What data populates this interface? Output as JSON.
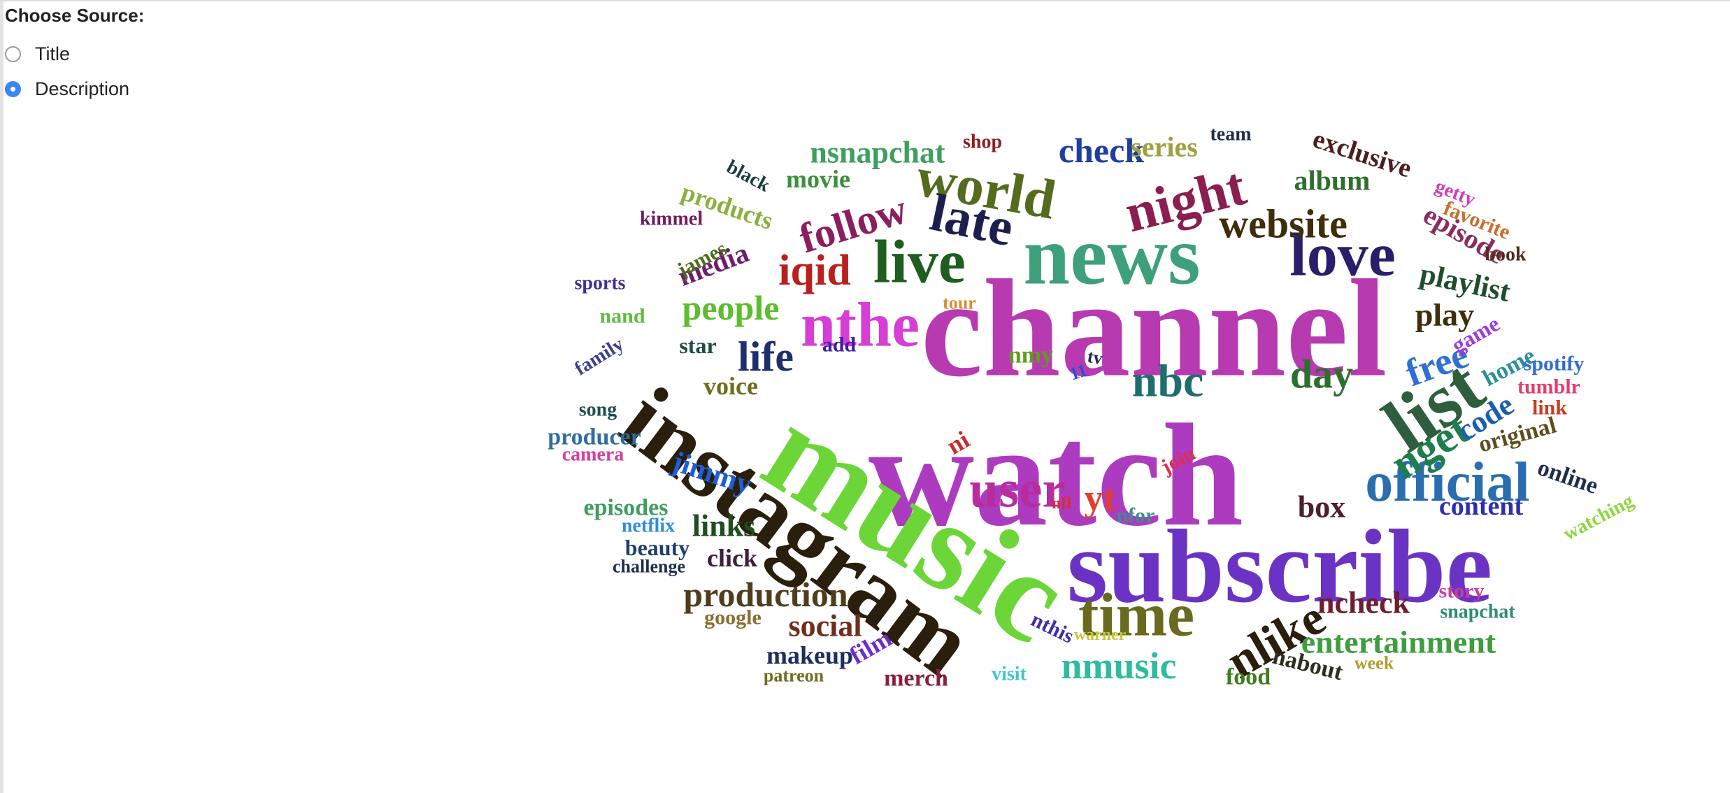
{
  "source_selector": {
    "title": "Choose Source:",
    "options": [
      {
        "label": "Title",
        "checked": false
      },
      {
        "label": "Description",
        "checked": true
      }
    ]
  },
  "word_cloud": {
    "words": [
      {
        "text": "channel",
        "color": "#b83ab0"
      },
      {
        "text": "watch",
        "color": "#ad3bbf"
      },
      {
        "text": "music",
        "color": "#6cd638"
      },
      {
        "text": "instagram",
        "color": "#2a1e0c"
      },
      {
        "text": "subscribe",
        "color": "#6a33c4"
      },
      {
        "text": "news",
        "color": "#3ea07a"
      },
      {
        "text": "list",
        "color": "#2e5e3e"
      },
      {
        "text": "nthe",
        "color": "#d63ed6"
      },
      {
        "text": "official",
        "color": "#2a6eb0"
      },
      {
        "text": "love",
        "color": "#2a1e6a"
      },
      {
        "text": "world",
        "color": "#556b1e"
      },
      {
        "text": "live",
        "color": "#1e5e1e"
      },
      {
        "text": "time",
        "color": "#6a6a1e"
      },
      {
        "text": "night",
        "color": "#8a1e4e"
      },
      {
        "text": "user",
        "color": "#b82c9e"
      },
      {
        "text": "late",
        "color": "#1e1e4e"
      },
      {
        "text": "nlike",
        "color": "#2a1e0c"
      },
      {
        "text": "nbc",
        "color": "#1e6e6e"
      },
      {
        "text": "nget",
        "color": "#1e7e4e"
      },
      {
        "text": "website",
        "color": "#3e2e0c"
      },
      {
        "text": "iqid",
        "color": "#b8201e"
      },
      {
        "text": "follow",
        "color": "#8a1e5e"
      },
      {
        "text": "life",
        "color": "#1e2e6e"
      },
      {
        "text": "day",
        "color": "#2e6e2e"
      },
      {
        "text": "free",
        "color": "#2e6ed6"
      },
      {
        "text": "nmusic",
        "color": "#2ebc9e"
      },
      {
        "text": "production",
        "color": "#4e3e1e"
      },
      {
        "text": "entertainment",
        "color": "#3e9e3e"
      },
      {
        "text": "people",
        "color": "#5ebc2e"
      },
      {
        "text": "playlist",
        "color": "#1e4e2e"
      },
      {
        "text": "ncheck",
        "color": "#6e1e2e"
      },
      {
        "text": "check",
        "color": "#1e3ea0"
      },
      {
        "text": "nsnapchat",
        "color": "#3ea05e"
      },
      {
        "text": "play",
        "color": "#3e2e0c"
      },
      {
        "text": "jimmy",
        "color": "#1e5ed6"
      },
      {
        "text": "yt",
        "color": "#e03e2e"
      },
      {
        "text": "links",
        "color": "#1e4e1e"
      },
      {
        "text": "box",
        "color": "#4e1e2e"
      },
      {
        "text": "social",
        "color": "#6e2e1e"
      },
      {
        "text": "code",
        "color": "#1e5eb0"
      },
      {
        "text": "content",
        "color": "#2e2eb0"
      },
      {
        "text": "episode",
        "color": "#8a2e5e"
      },
      {
        "text": "exclusive",
        "color": "#4e1e1e"
      },
      {
        "text": "series",
        "color": "#a0a03e"
      },
      {
        "text": "album",
        "color": "#2e6e2e"
      },
      {
        "text": "media",
        "color": "#6e1e6e"
      },
      {
        "text": "products",
        "color": "#8ab03e"
      },
      {
        "text": "movie",
        "color": "#3e8e3e"
      },
      {
        "text": "voice",
        "color": "#6e6e1e"
      },
      {
        "text": "original",
        "color": "#5e4e1e"
      },
      {
        "text": "episodes",
        "color": "#3e9e5e"
      },
      {
        "text": "merch",
        "color": "#8a1e3e"
      },
      {
        "text": "food",
        "color": "#3e7e1e"
      },
      {
        "text": "makeup",
        "color": "#1e2e5e"
      },
      {
        "text": "nabout",
        "color": "#2e2e1e"
      },
      {
        "text": "click",
        "color": "#3e1e3e"
      },
      {
        "text": "film",
        "color": "#6e2ec6"
      },
      {
        "text": "producer",
        "color": "#2e6e9e"
      },
      {
        "text": "online",
        "color": "#1e2e4e"
      },
      {
        "text": "home",
        "color": "#2e8e9e"
      },
      {
        "text": "game",
        "color": "#9e3ed6"
      },
      {
        "text": "nmy",
        "color": "#5e9e1e"
      },
      {
        "text": "star",
        "color": "#1e4e3e"
      },
      {
        "text": "ni",
        "color": "#c82e2e"
      },
      {
        "text": "beauty",
        "color": "#1e3e6e"
      },
      {
        "text": "spotify",
        "color": "#2e6ed6"
      },
      {
        "text": "tumblr",
        "color": "#e03e6e"
      },
      {
        "text": "google",
        "color": "#8a6e2e"
      },
      {
        "text": "nand",
        "color": "#5ebc3e"
      },
      {
        "text": "add",
        "color": "#3e1e9e"
      },
      {
        "text": "story",
        "color": "#c83e9e"
      },
      {
        "text": "link",
        "color": "#c83e1e"
      },
      {
        "text": "nthis",
        "color": "#3e2eb0"
      },
      {
        "text": "nfor",
        "color": "#3e8e8e"
      },
      {
        "text": "snapchat",
        "color": "#2e8e6e"
      },
      {
        "text": "favorite",
        "color": "#c86e2e"
      },
      {
        "text": "james",
        "color": "#4e6e1e"
      },
      {
        "text": "sports",
        "color": "#3e2e9e"
      },
      {
        "text": "kimmel",
        "color": "#6e1e5e"
      },
      {
        "text": "watching",
        "color": "#8ed63e"
      },
      {
        "text": "family",
        "color": "#3e3e8e"
      },
      {
        "text": "book",
        "color": "#4e2e1e"
      },
      {
        "text": "camera",
        "color": "#d63e9e"
      },
      {
        "text": "netflix",
        "color": "#2e8ed6"
      },
      {
        "text": "song",
        "color": "#1e4e4e"
      },
      {
        "text": "challenge",
        "color": "#1e2e4e"
      },
      {
        "text": "team",
        "color": "#1e2e4e"
      },
      {
        "text": "black",
        "color": "#1e3e3e"
      },
      {
        "text": "shop",
        "color": "#8e1e1e"
      },
      {
        "text": "getty",
        "color": "#d63eae"
      },
      {
        "text": "join",
        "color": "#e02e4e"
      },
      {
        "text": "visit",
        "color": "#3ec6d6"
      },
      {
        "text": "patreon",
        "color": "#6e6e1e"
      },
      {
        "text": "week",
        "color": "#b09e2e"
      },
      {
        "text": "warner",
        "color": "#c6c63e"
      },
      {
        "text": "tour",
        "color": "#d68e2e"
      },
      {
        "text": "nfl",
        "color": "#d62e2e"
      },
      {
        "text": "11",
        "color": "#2e4ed6"
      },
      {
        "text": "tv",
        "color": "#1e2e4e"
      }
    ]
  }
}
